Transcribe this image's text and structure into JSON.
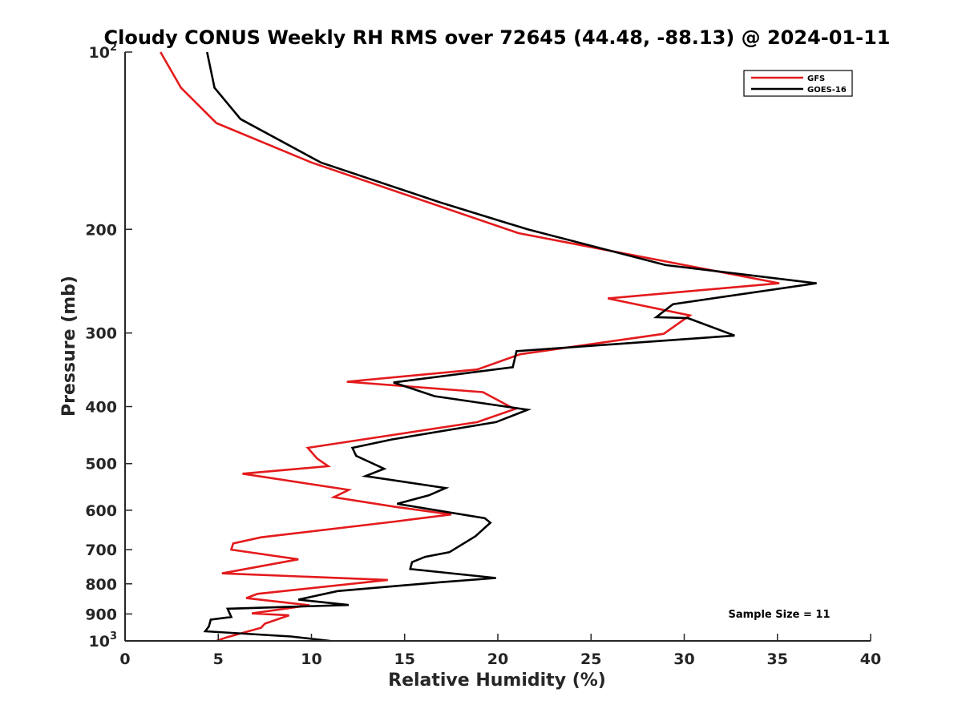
{
  "chart_data": {
    "type": "line",
    "title": "Cloudy CONUS Weekly RH RMS over 72645 (44.48, -88.13) @ 2024-01-11",
    "xlabel": "Relative Humidity (%)",
    "ylabel": "Pressure (mb)",
    "xlim": [
      0,
      40
    ],
    "ylim": [
      100,
      1000
    ],
    "y_scale": "log",
    "y_reversed": true,
    "grid": false,
    "legend_position": "top-right",
    "x_ticks": [
      "0",
      "5",
      "10",
      "15",
      "20",
      "25",
      "30",
      "35",
      "40"
    ],
    "y_ticks": [
      {
        "value": 100,
        "label": "10",
        "sup": "2"
      },
      {
        "value": 200,
        "label": "200"
      },
      {
        "value": 300,
        "label": "300"
      },
      {
        "value": 400,
        "label": "400"
      },
      {
        "value": 500,
        "label": "500"
      },
      {
        "value": 600,
        "label": "600"
      },
      {
        "value": 700,
        "label": "700"
      },
      {
        "value": 800,
        "label": "800"
      },
      {
        "value": 900,
        "label": "900"
      },
      {
        "value": 1000,
        "label": "10",
        "sup": "3"
      }
    ],
    "annotation": "Sample Size = 11",
    "series": [
      {
        "name": "GFS",
        "color": "#e41a1c",
        "points": [
          [
            1.9,
            100
          ],
          [
            3.0,
            115
          ],
          [
            4.9,
            132
          ],
          [
            10.0,
            154
          ],
          [
            21.1,
            203
          ],
          [
            35.1,
            247
          ],
          [
            25.9,
            262
          ],
          [
            30.3,
            280
          ],
          [
            28.9,
            301
          ],
          [
            21.2,
            326
          ],
          [
            18.9,
            346
          ],
          [
            11.9,
            363
          ],
          [
            19.2,
            378
          ],
          [
            20.9,
            404
          ],
          [
            18.9,
            425
          ],
          [
            9.8,
            470
          ],
          [
            10.3,
            490
          ],
          [
            10.9,
            505
          ],
          [
            6.3,
            520
          ],
          [
            12.0,
            554
          ],
          [
            11.2,
            570
          ],
          [
            14.5,
            592
          ],
          [
            17.5,
            610
          ],
          [
            14.5,
            627
          ],
          [
            7.3,
            667
          ],
          [
            5.8,
            683
          ],
          [
            5.7,
            700
          ],
          [
            9.3,
            727
          ],
          [
            5.2,
            768
          ],
          [
            14.1,
            788
          ],
          [
            7.1,
            832
          ],
          [
            6.5,
            846
          ],
          [
            9.9,
            870
          ],
          [
            6.8,
            898
          ],
          [
            8.8,
            905
          ],
          [
            7.5,
            935
          ],
          [
            7.3,
            950
          ],
          [
            5.5,
            985
          ],
          [
            4.9,
            1000
          ]
        ]
      },
      {
        "name": "GOES-16",
        "color": "#000000",
        "points": [
          [
            4.4,
            100
          ],
          [
            4.8,
            115
          ],
          [
            6.2,
            130
          ],
          [
            10.5,
            154
          ],
          [
            16.9,
            180
          ],
          [
            21.6,
            200
          ],
          [
            29.0,
            230
          ],
          [
            37.1,
            247
          ],
          [
            29.4,
            268
          ],
          [
            28.5,
            282
          ],
          [
            30.2,
            283
          ],
          [
            32.7,
            303
          ],
          [
            21.0,
            322
          ],
          [
            20.8,
            343
          ],
          [
            14.4,
            364
          ],
          [
            16.6,
            384
          ],
          [
            21.6,
            405
          ],
          [
            19.9,
            425
          ],
          [
            14.3,
            455
          ],
          [
            12.2,
            470
          ],
          [
            12.4,
            485
          ],
          [
            13.9,
            510
          ],
          [
            12.9,
            525
          ],
          [
            17.2,
            550
          ],
          [
            16.3,
            566
          ],
          [
            14.6,
            585
          ],
          [
            19.3,
            619
          ],
          [
            19.6,
            630
          ],
          [
            18.8,
            664
          ],
          [
            17.4,
            707
          ],
          [
            16.1,
            720
          ],
          [
            15.4,
            735
          ],
          [
            15.3,
            755
          ],
          [
            19.9,
            782
          ],
          [
            16.9,
            795
          ],
          [
            11.4,
            823
          ],
          [
            9.3,
            851
          ],
          [
            12.0,
            869
          ],
          [
            5.5,
            882
          ],
          [
            5.7,
            911
          ],
          [
            4.6,
            920
          ],
          [
            4.5,
            945
          ],
          [
            4.3,
            963
          ],
          [
            8.9,
            983
          ],
          [
            11.0,
            1000
          ]
        ]
      }
    ]
  }
}
